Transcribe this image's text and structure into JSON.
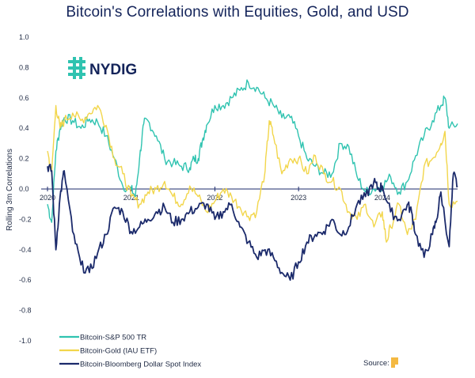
{
  "title": "Bitcoin's Correlations with Equities, Gold, and USD",
  "logo": {
    "text": "NYDIG"
  },
  "source": {
    "label": "Source:"
  },
  "colors": {
    "sp500": "#2fc3b0",
    "gold": "#f2d64b",
    "usd": "#1b2a6b",
    "zero_line": "#1b2a6b",
    "title": "#14245a"
  },
  "chart_data": {
    "type": "line",
    "title": "Bitcoin's Correlations with Equities, Gold, and USD",
    "ylabel": "Rolling 3m Correlations",
    "xlabel": "",
    "ylim": [
      -1.0,
      1.0
    ],
    "xlim": [
      2020.0,
      2024.9
    ],
    "yticks": [
      "1.0",
      "0.8",
      "0.6",
      "0.4",
      "0.2",
      "0.0",
      "-0.2",
      "-0.4",
      "-0.6",
      "-0.8",
      "-1.0"
    ],
    "xticks": [
      "2020",
      "2021",
      "2022",
      "2023",
      "2024"
    ],
    "grid": false,
    "legend_position": "bottom-left",
    "series": [
      {
        "name": "Bitcoin-S&P 500 TR",
        "x": [
          2020.0,
          2020.05,
          2020.1,
          2020.15,
          2020.2,
          2020.3,
          2020.4,
          2020.5,
          2020.6,
          2020.7,
          2020.8,
          2020.9,
          2021.0,
          2021.05,
          2021.1,
          2021.15,
          2021.2,
          2021.3,
          2021.4,
          2021.5,
          2021.6,
          2021.7,
          2021.75,
          2021.8,
          2021.85,
          2021.9,
          2022.0,
          2022.1,
          2022.2,
          2022.3,
          2022.4,
          2022.5,
          2022.6,
          2022.7,
          2022.8,
          2022.9,
          2023.0,
          2023.1,
          2023.2,
          2023.3,
          2023.4,
          2023.5,
          2023.6,
          2023.7,
          2023.8,
          2023.9,
          2024.0,
          2024.1,
          2024.2,
          2024.3,
          2024.4,
          2024.5,
          2024.6,
          2024.7,
          2024.75,
          2024.8,
          2024.9
        ],
        "values": [
          -0.1,
          -0.22,
          0.25,
          0.4,
          0.47,
          0.45,
          0.4,
          0.46,
          0.44,
          0.35,
          0.2,
          0.02,
          0.0,
          -0.05,
          0.2,
          0.43,
          0.45,
          0.35,
          0.2,
          0.17,
          0.15,
          0.14,
          0.2,
          0.2,
          0.32,
          0.42,
          0.55,
          0.55,
          0.6,
          0.65,
          0.7,
          0.67,
          0.6,
          0.55,
          0.47,
          0.47,
          0.35,
          0.2,
          0.15,
          0.1,
          0.1,
          0.3,
          0.28,
          0.08,
          -0.02,
          0.0,
          0.02,
          0.08,
          -0.02,
          0.05,
          0.22,
          0.35,
          0.45,
          0.55,
          0.6,
          0.4,
          0.43
        ]
      },
      {
        "name": "Bitcoin-Gold (IAU ETF)",
        "x": [
          2020.0,
          2020.05,
          2020.1,
          2020.15,
          2020.2,
          2020.3,
          2020.4,
          2020.5,
          2020.6,
          2020.7,
          2020.8,
          2020.9,
          2021.0,
          2021.1,
          2021.2,
          2021.3,
          2021.4,
          2021.5,
          2021.6,
          2021.7,
          2021.8,
          2021.9,
          2022.0,
          2022.1,
          2022.2,
          2022.3,
          2022.4,
          2022.5,
          2022.6,
          2022.65,
          2022.7,
          2022.8,
          2022.9,
          2023.0,
          2023.1,
          2023.2,
          2023.3,
          2023.4,
          2023.5,
          2023.6,
          2023.7,
          2023.8,
          2023.9,
          2024.0,
          2024.05,
          2024.1,
          2024.2,
          2024.3,
          2024.4,
          2024.5,
          2024.6,
          2024.7,
          2024.75,
          2024.8,
          2024.9
        ],
        "values": [
          0.25,
          0.1,
          0.55,
          0.4,
          0.45,
          0.5,
          0.45,
          0.5,
          0.55,
          0.42,
          0.2,
          0.1,
          -0.05,
          -0.1,
          -0.02,
          0.0,
          0.05,
          -0.05,
          -0.1,
          0.02,
          -0.05,
          -0.15,
          -0.08,
          0.0,
          -0.05,
          -0.12,
          -0.18,
          -0.15,
          0.12,
          0.45,
          0.35,
          0.1,
          0.2,
          0.2,
          0.1,
          0.22,
          0.1,
          0.05,
          0.0,
          -0.15,
          -0.2,
          -0.1,
          -0.25,
          -0.15,
          -0.35,
          -0.25,
          -0.1,
          -0.3,
          -0.2,
          0.15,
          0.2,
          0.3,
          0.38,
          -0.1,
          -0.08
        ]
      },
      {
        "name": "Bitcoin-Bloomberg Dollar Spot Index",
        "x": [
          2020.0,
          2020.05,
          2020.1,
          2020.15,
          2020.2,
          2020.3,
          2020.4,
          2020.5,
          2020.6,
          2020.7,
          2020.8,
          2020.9,
          2021.0,
          2021.1,
          2021.2,
          2021.3,
          2021.4,
          2021.5,
          2021.6,
          2021.7,
          2021.8,
          2021.9,
          2022.0,
          2022.1,
          2022.2,
          2022.3,
          2022.4,
          2022.5,
          2022.6,
          2022.7,
          2022.8,
          2022.9,
          2023.0,
          2023.1,
          2023.2,
          2023.3,
          2023.4,
          2023.5,
          2023.6,
          2023.7,
          2023.8,
          2023.9,
          2023.95,
          2024.0,
          2024.1,
          2024.2,
          2024.3,
          2024.35,
          2024.4,
          2024.5,
          2024.6,
          2024.65,
          2024.7,
          2024.8,
          2024.85,
          2024.9
        ],
        "values": [
          0.15,
          0.12,
          -0.4,
          -0.05,
          0.12,
          -0.28,
          -0.5,
          -0.55,
          -0.42,
          -0.3,
          -0.12,
          -0.15,
          -0.28,
          -0.25,
          -0.2,
          -0.15,
          -0.12,
          -0.22,
          -0.2,
          -0.15,
          -0.12,
          -0.1,
          -0.2,
          -0.15,
          -0.1,
          -0.25,
          -0.35,
          -0.45,
          -0.4,
          -0.45,
          -0.55,
          -0.6,
          -0.48,
          -0.35,
          -0.3,
          -0.28,
          -0.2,
          -0.3,
          -0.25,
          -0.1,
          -0.05,
          0.05,
          0.0,
          0.02,
          -0.15,
          -0.2,
          -0.1,
          -0.15,
          -0.3,
          -0.45,
          -0.3,
          -0.2,
          -0.02,
          -0.38,
          0.1,
          0.02
        ]
      }
    ]
  }
}
